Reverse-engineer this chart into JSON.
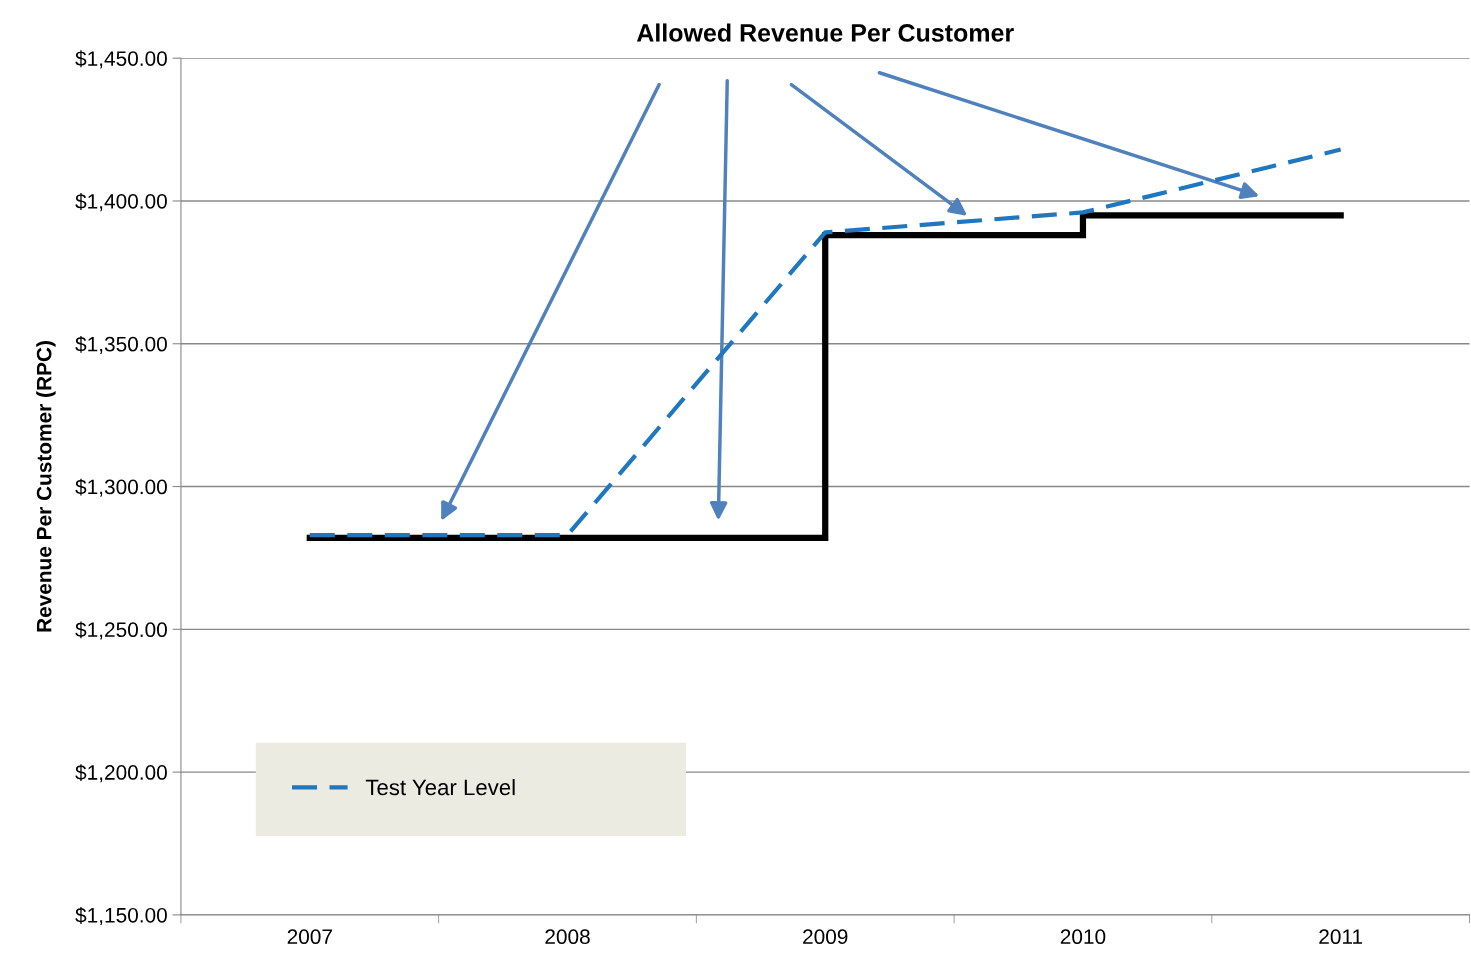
{
  "chart_data": {
    "type": "line",
    "title": "Allowed Revenue Per Customer",
    "ylabel": "Revenue Per Customer (RPC)",
    "categories": [
      "2007",
      "2008",
      "2009",
      "2010",
      "2011"
    ],
    "series": [
      {
        "type": "step",
        "color": "#000000",
        "values": [
          1282,
          1282,
          1388,
          1395,
          1395
        ],
        "line_style": "solid"
      },
      {
        "name": "Test Year Level",
        "color": "#1f77c0",
        "values": [
          1283,
          1283,
          1389,
          1396,
          1418
        ],
        "line_style": "dashed"
      }
    ],
    "ylim": [
      1150,
      1450
    ],
    "yticks": [
      {
        "value": 1150,
        "label": "$1,150.00"
      },
      {
        "value": 1200,
        "label": "$1,200.00"
      },
      {
        "value": 1250,
        "label": "$1,250.00"
      },
      {
        "value": 1300,
        "label": "$1,300.00"
      },
      {
        "value": 1350,
        "label": "$1,350.00"
      },
      {
        "value": 1400,
        "label": "$1,400.00"
      },
      {
        "value": 1450,
        "label": "$1,450.00"
      }
    ],
    "grid": "y",
    "legend": "bottom left",
    "marker": "none"
  }
}
